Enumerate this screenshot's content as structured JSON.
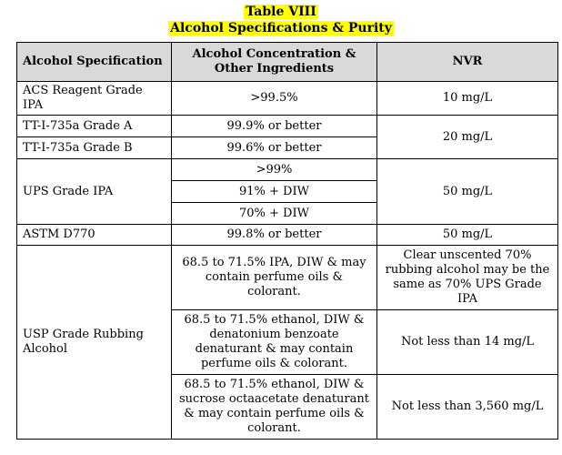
{
  "title": {
    "line1": "Table VIII",
    "line2": "Alcohol Specifications & Purity"
  },
  "headers": {
    "spec": "Alcohol Specification",
    "conc": "Alcohol Concentration & Other Ingredients",
    "nvr": "NVR"
  },
  "rows": {
    "acs": {
      "spec": "ACS Reagent Grade IPA",
      "conc": ">99.5%",
      "nvr": "10 mg/L"
    },
    "tta": {
      "spec": "TT-I-735a Grade A",
      "conc": "99.9% or better"
    },
    "ttb": {
      "spec": "TT-I-735a Grade B",
      "conc": "99.6% or better"
    },
    "tt_nvr": "20 mg/L",
    "ups": {
      "spec": "UPS Grade IPA",
      "conc1": ">99%",
      "conc2": "91% + DIW",
      "conc3": "70% + DIW",
      "nvr": "50 mg/L"
    },
    "astm": {
      "spec": "ASTM D770",
      "conc": "99.8% or better",
      "nvr": "50 mg/L"
    },
    "usp": {
      "spec": "USP Grade Rubbing Alcohol",
      "conc1": "68.5 to 71.5% IPA, DIW & may contain perfume oils & colorant.",
      "nvr1": "Clear unscented 70% rubbing alcohol may be the same as 70% UPS Grade IPA",
      "conc2": "68.5 to 71.5% ethanol, DIW & denatonium benzoate denaturant & may contain perfume oils & colorant.",
      "nvr2": "Not less than 14 mg/L",
      "conc3": "68.5 to 71.5% ethanol, DIW & sucrose octaacetate denaturant & may contain perfume oils & colorant.",
      "nvr3": "Not less than 3,560 mg/L"
    }
  }
}
